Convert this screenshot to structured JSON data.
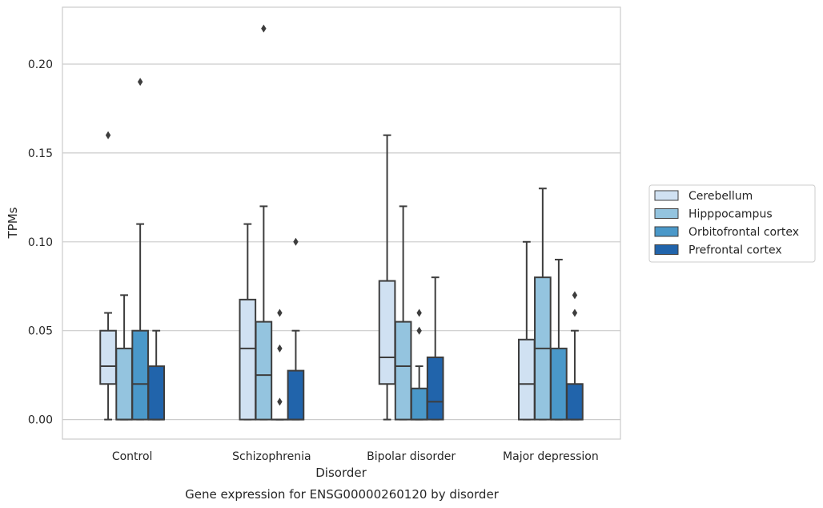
{
  "chart_data": {
    "type": "box",
    "caption": "Gene expression for ENSG00000260120 by disorder",
    "xlabel": "Disorder",
    "ylabel": "TPMs",
    "ylim": [
      -0.011,
      0.232
    ],
    "yticks": [
      "0.00",
      "0.05",
      "0.10",
      "0.15",
      "0.20"
    ],
    "ytick_values": [
      0,
      0.05,
      0.1,
      0.15,
      0.2
    ],
    "grid": true,
    "legend_position": "right",
    "categories": [
      "Control",
      "Schizophrenia",
      "Bipolar disorder",
      "Major depression"
    ],
    "series": [
      {
        "name": "Cerebellum",
        "color": "#d0e1f2",
        "boxes": [
          {
            "whislo": 0,
            "q1": 0.02,
            "med": 0.03,
            "q3": 0.05,
            "whishi": 0.06,
            "fliers": [
              0.16
            ]
          },
          {
            "whislo": 0,
            "q1": 0,
            "med": 0.04,
            "q3": 0.0675,
            "whishi": 0.11,
            "fliers": []
          },
          {
            "whislo": 0,
            "q1": 0.02,
            "med": 0.035,
            "q3": 0.078,
            "whishi": 0.16,
            "fliers": []
          },
          {
            "whislo": 0,
            "q1": 0,
            "med": 0.02,
            "q3": 0.045,
            "whishi": 0.1,
            "fliers": []
          }
        ]
      },
      {
        "name": "Hipppocampus",
        "color": "#94c4df",
        "boxes": [
          {
            "whislo": 0,
            "q1": 0,
            "med": 0,
            "q3": 0.04,
            "whishi": 0.07,
            "fliers": []
          },
          {
            "whislo": 0,
            "q1": 0,
            "med": 0.025,
            "q3": 0.055,
            "whishi": 0.12,
            "fliers": [
              0.22
            ]
          },
          {
            "whislo": 0,
            "q1": 0,
            "med": 0.03,
            "q3": 0.055,
            "whishi": 0.12,
            "fliers": []
          },
          {
            "whislo": 0,
            "q1": 0,
            "med": 0.04,
            "q3": 0.08,
            "whishi": 0.13,
            "fliers": []
          }
        ]
      },
      {
        "name": "Orbitofrontal cortex",
        "color": "#4a98c9",
        "boxes": [
          {
            "whislo": 0,
            "q1": 0,
            "med": 0.02,
            "q3": 0.05,
            "whishi": 0.11,
            "fliers": [
              0.19
            ]
          },
          {
            "whislo": 0,
            "q1": 0,
            "med": 0,
            "q3": 0,
            "whishi": 0,
            "fliers": [
              0.01,
              0.04,
              0.06
            ]
          },
          {
            "whislo": 0,
            "q1": 0,
            "med": 0,
            "q3": 0.0175,
            "whishi": 0.03,
            "fliers": [
              0.05,
              0.06
            ]
          },
          {
            "whislo": 0,
            "q1": 0,
            "med": 0,
            "q3": 0.04,
            "whishi": 0.09,
            "fliers": []
          }
        ]
      },
      {
        "name": "Prefrontal cortex",
        "color": "#2164ab",
        "boxes": [
          {
            "whislo": 0,
            "q1": 0,
            "med": 0,
            "q3": 0.03,
            "whishi": 0.05,
            "fliers": []
          },
          {
            "whislo": 0,
            "q1": 0,
            "med": 0,
            "q3": 0.0275,
            "whishi": 0.05,
            "fliers": [
              0.1
            ]
          },
          {
            "whislo": 0,
            "q1": 0,
            "med": 0.01,
            "q3": 0.035,
            "whishi": 0.08,
            "fliers": []
          },
          {
            "whislo": 0,
            "q1": 0,
            "med": 0,
            "q3": 0.02,
            "whishi": 0.05,
            "fliers": [
              0.06,
              0.07
            ]
          }
        ]
      }
    ]
  }
}
